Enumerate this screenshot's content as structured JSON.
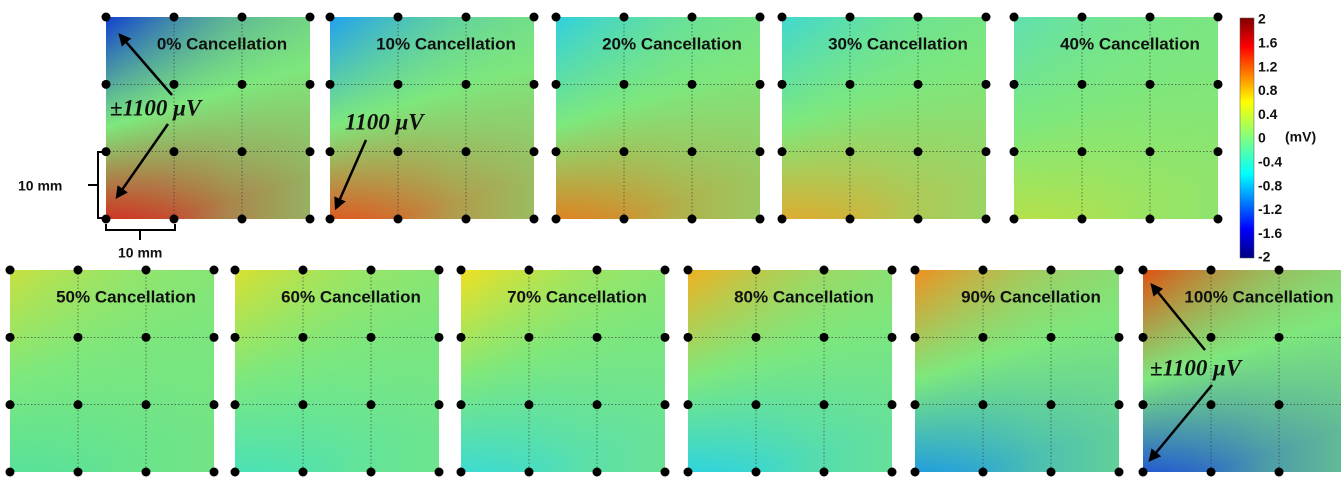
{
  "panels": [
    {
      "label": "0% Cancellation"
    },
    {
      "label": "10% Cancellation"
    },
    {
      "label": "20% Cancellation"
    },
    {
      "label": "30% Cancellation"
    },
    {
      "label": "40% Cancellation"
    },
    {
      "label": "50% Cancellation"
    },
    {
      "label": "60% Cancellation"
    },
    {
      "label": "70% Cancellation"
    },
    {
      "label": "80% Cancellation"
    },
    {
      "label": "90% Cancellation"
    },
    {
      "label": "100% Cancellation"
    }
  ],
  "colorbar": {
    "ticks": [
      2,
      1.6,
      1.2,
      0.8,
      0.4,
      0,
      -0.4,
      -0.8,
      -1.2,
      -1.6,
      -2
    ],
    "unit": "(mV)"
  },
  "annotations": {
    "top_left": "±1100 μV",
    "top_second": "1100 μV",
    "bottom_right": "±1100 μV"
  },
  "scale": {
    "vertical": "10 mm",
    "horizontal": "10 mm"
  }
}
